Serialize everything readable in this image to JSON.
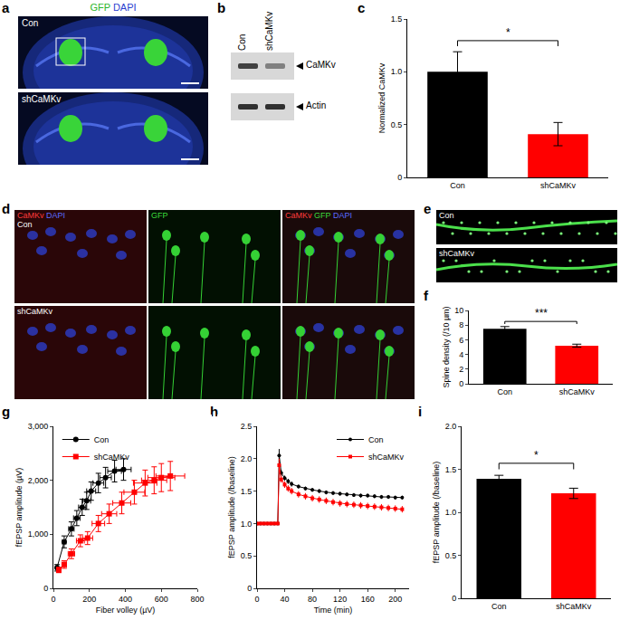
{
  "panel_labels": [
    "a",
    "b",
    "c",
    "d",
    "e",
    "f",
    "g",
    "h",
    "i"
  ],
  "panel_a": {
    "header": [
      {
        "text": "GFP",
        "color": "#2bb52b"
      },
      {
        "text": "DAPI",
        "color": "#2b3fd0"
      }
    ],
    "rows": [
      "Con",
      "shCaMKv"
    ]
  },
  "panel_b": {
    "lanes": [
      "Con",
      "shCaMKv"
    ],
    "bands": [
      "CaMKv",
      "Actin"
    ]
  },
  "panel_d": {
    "columns": [
      [
        {
          "text": "CaMKv",
          "color": "#ff3b3b"
        },
        {
          "text": "DAPI",
          "color": "#5a6bff"
        }
      ],
      [
        {
          "text": "GFP",
          "color": "#3cdc3c"
        }
      ],
      [
        {
          "text": "CaMKv",
          "color": "#ff3b3b"
        },
        {
          "text": "GFP",
          "color": "#3cdc3c"
        },
        {
          "text": "DAPI",
          "color": "#5a6bff"
        }
      ]
    ],
    "rows": [
      "Con",
      "shCaMKv"
    ]
  },
  "panel_e": {
    "rows": [
      "Con",
      "shCaMKv"
    ]
  },
  "chart_data": [
    {
      "type": "bar",
      "y_label": "Normalized CaMKv",
      "categories": [
        "Con",
        "shCaMKv"
      ],
      "values": [
        1.0,
        0.41
      ],
      "errors": [
        0.19,
        0.11
      ],
      "colors": [
        "#000000",
        "#ff0000"
      ],
      "ylim": [
        0,
        1.5
      ],
      "yticks": [
        0,
        0.5,
        {
          "value": 1,
          "label": "1.0"
        },
        1.5
      ],
      "significance": [
        {
          "text": "*",
          "between": [
            "Con",
            "shCaMKv"
          ]
        }
      ]
    },
    {
      "type": "bar",
      "y_label": "Spine density (/10 µm)",
      "categories": [
        "Con",
        "shCaMKv"
      ],
      "values": [
        7.5,
        5.2
      ],
      "errors": [
        0.3,
        0.2
      ],
      "colors": [
        "#000000",
        "#ff0000"
      ],
      "ylim": [
        0,
        10
      ],
      "yticks": [
        0,
        2,
        4,
        6,
        8,
        10
      ],
      "significance": [
        {
          "text": "***",
          "between": [
            "Con",
            "shCaMKv"
          ]
        }
      ]
    },
    {
      "type": "scatter",
      "x_label": "Fiber volley (µV)",
      "y_label": "fEPSP amplitude (µV)",
      "legend": "upper left",
      "xlim": [
        0,
        800
      ],
      "xticks": [
        0,
        200,
        400,
        600,
        800
      ],
      "ylim": [
        0,
        3000
      ],
      "yticks": [
        0,
        {
          "value": 1000,
          "label": "1,000"
        },
        {
          "value": 2000,
          "label": "2,000"
        },
        {
          "value": 3000,
          "label": "3,000"
        }
      ],
      "series": [
        {
          "name": "Con",
          "color": "#000000",
          "marker": "circle",
          "x": [
            20,
            60,
            100,
            130,
            160,
            185,
            210,
            250,
            290,
            340,
            390
          ],
          "values": [
            380,
            860,
            1100,
            1300,
            1500,
            1620,
            1800,
            1950,
            2050,
            2170,
            2200
          ],
          "x_errors": [
            5,
            10,
            15,
            18,
            20,
            22,
            25,
            30,
            32,
            38,
            42
          ],
          "errors": [
            60,
            110,
            130,
            140,
            150,
            160,
            170,
            180,
            190,
            200,
            200
          ]
        },
        {
          "name": "shCaMKv",
          "color": "#ff0000",
          "marker": "square",
          "x": [
            30,
            60,
            100,
            150,
            190,
            250,
            310,
            380,
            450,
            510,
            560,
            600,
            650
          ],
          "values": [
            340,
            440,
            640,
            880,
            930,
            1200,
            1380,
            1580,
            1780,
            1950,
            2000,
            2050,
            2080
          ],
          "x_errors": [
            8,
            12,
            18,
            22,
            28,
            35,
            42,
            50,
            58,
            65,
            70,
            75,
            80
          ],
          "errors": [
            50,
            70,
            90,
            110,
            120,
            150,
            180,
            200,
            220,
            240,
            250,
            260,
            270
          ]
        }
      ]
    },
    {
      "type": "line",
      "x_label": "Time (min)",
      "y_label": "fEPSP amplitude (/baseline)",
      "legend": "upper right",
      "xlim": [
        0,
        220
      ],
      "xticks": [
        0,
        40,
        80,
        120,
        160,
        200
      ],
      "ylim": [
        0,
        2.5
      ],
      "yticks": [
        0,
        0.5,
        {
          "value": 1,
          "label": "1.0"
        },
        1.5,
        {
          "value": 2,
          "label": "2.0"
        },
        2.5
      ],
      "x": [
        0,
        5,
        10,
        15,
        20,
        25,
        30,
        32,
        35,
        40,
        45,
        50,
        60,
        70,
        80,
        90,
        100,
        110,
        120,
        130,
        140,
        150,
        160,
        170,
        180,
        190,
        200,
        210
      ],
      "series": [
        {
          "name": "Con",
          "color": "#000000",
          "marker": "circle",
          "values": [
            1,
            1,
            1,
            1,
            1,
            1,
            1,
            2.05,
            1.78,
            1.7,
            1.65,
            1.61,
            1.57,
            1.54,
            1.52,
            1.5,
            1.48,
            1.47,
            1.46,
            1.45,
            1.44,
            1.43,
            1.43,
            1.42,
            1.41,
            1.41,
            1.4,
            1.4
          ],
          "errors": [
            0.01,
            0.01,
            0.01,
            0.01,
            0.01,
            0.01,
            0.01,
            0.1,
            0.05,
            0.04,
            0.04,
            0.04,
            0.03,
            0.03,
            0.03,
            0.03,
            0.03,
            0.03,
            0.03,
            0.03,
            0.03,
            0.03,
            0.03,
            0.03,
            0.03,
            0.03,
            0.03,
            0.03
          ]
        },
        {
          "name": "shCaMKv",
          "color": "#ff0000",
          "marker": "square",
          "values": [
            1,
            1,
            1,
            1,
            1,
            1,
            1,
            1.9,
            1.68,
            1.6,
            1.54,
            1.5,
            1.45,
            1.42,
            1.39,
            1.37,
            1.35,
            1.33,
            1.31,
            1.3,
            1.29,
            1.28,
            1.27,
            1.26,
            1.25,
            1.24,
            1.23,
            1.22
          ],
          "errors": [
            0.01,
            0.01,
            0.01,
            0.01,
            0.01,
            0.01,
            0.01,
            0.1,
            0.05,
            0.05,
            0.05,
            0.05,
            0.05,
            0.05,
            0.05,
            0.05,
            0.05,
            0.05,
            0.05,
            0.05,
            0.05,
            0.05,
            0.05,
            0.05,
            0.05,
            0.05,
            0.05,
            0.05
          ]
        }
      ]
    },
    {
      "type": "bar",
      "y_label": "fEPSP amplitude (/baseline)",
      "categories": [
        "Con",
        "shCaMKv"
      ],
      "values": [
        1.39,
        1.22
      ],
      "errors": [
        0.04,
        0.06
      ],
      "colors": [
        "#000000",
        "#ff0000"
      ],
      "ylim": [
        0,
        2
      ],
      "yticks": [
        0,
        0.5,
        {
          "value": 1,
          "label": "1.0"
        },
        1.5,
        {
          "value": 2,
          "label": "2.0"
        }
      ],
      "significance": [
        {
          "text": "*",
          "between": [
            "Con",
            "shCaMKv"
          ]
        }
      ]
    }
  ]
}
